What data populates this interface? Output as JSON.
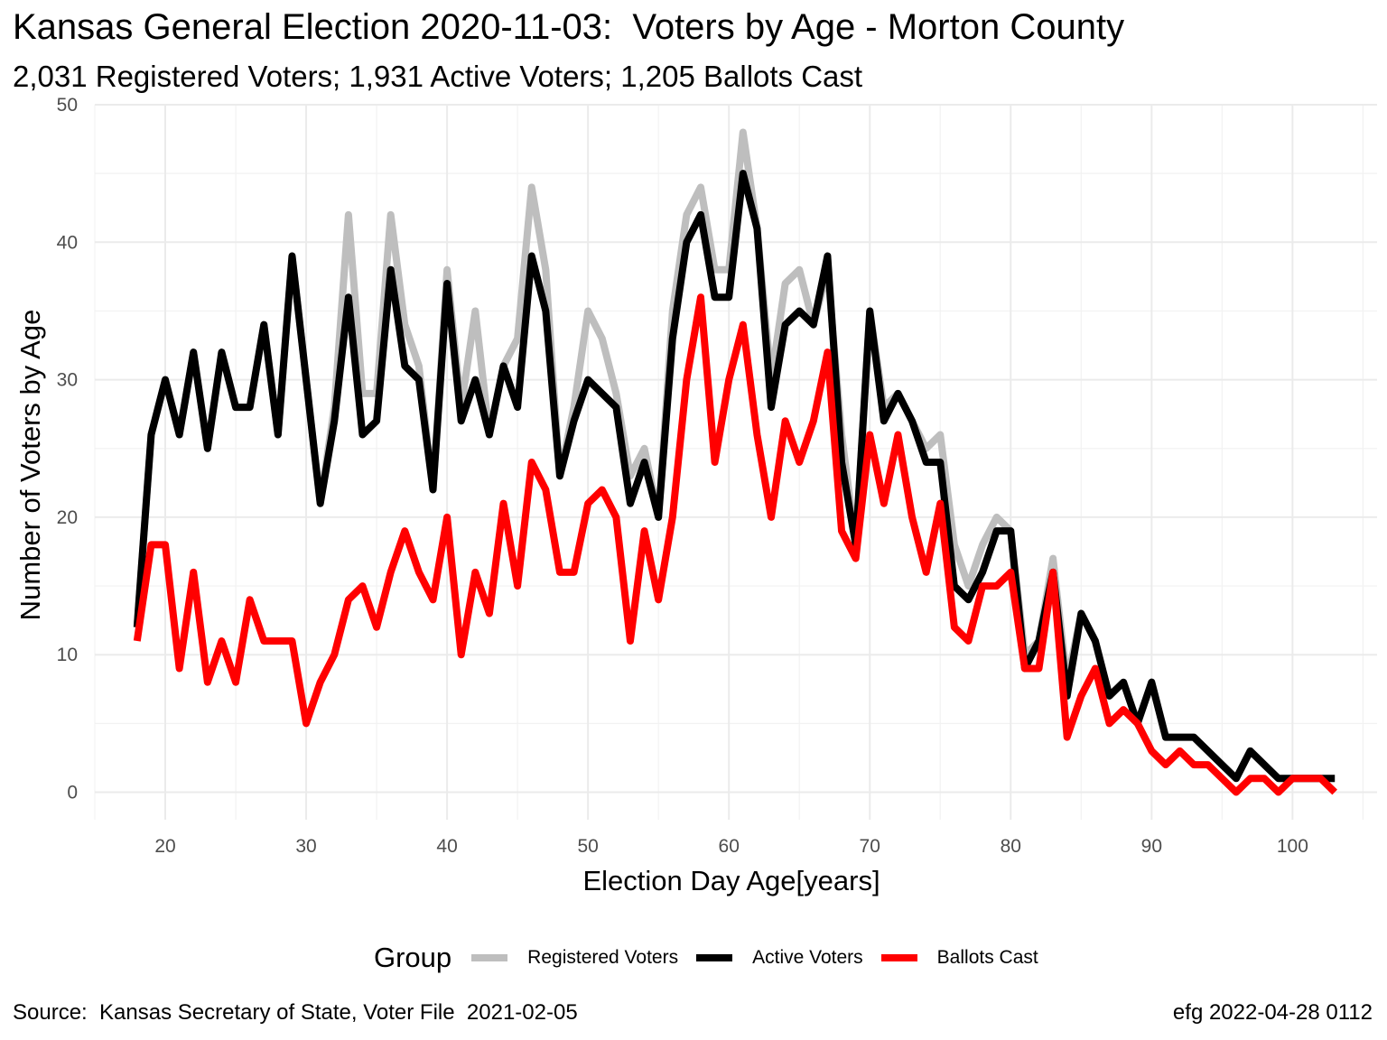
{
  "chart_data": {
    "type": "line",
    "title": "Kansas General Election 2020-11-03:  Voters by Age - Morton County",
    "subtitle": "2,031 Registered Voters; 1,931 Active Voters; 1,205 Ballots Cast",
    "xlabel": "Election Day Age[years]",
    "ylabel": "Number of Voters by Age",
    "xlim": [
      15,
      106
    ],
    "ylim": [
      -2,
      50
    ],
    "xticks": [
      20,
      30,
      40,
      50,
      60,
      70,
      80,
      90,
      100
    ],
    "yticks": [
      0,
      10,
      20,
      30,
      40,
      50
    ],
    "grid": true,
    "legend": {
      "title": "Group",
      "position": "bottom"
    },
    "caption_left": "Source:  Kansas Secretary of State, Voter File  2021-02-05",
    "caption_right": "efg 2022-04-28 0112",
    "x": [
      18,
      19,
      20,
      21,
      22,
      23,
      24,
      25,
      26,
      27,
      28,
      29,
      30,
      31,
      32,
      33,
      34,
      35,
      36,
      37,
      38,
      39,
      40,
      41,
      42,
      43,
      44,
      45,
      46,
      47,
      48,
      49,
      50,
      51,
      52,
      53,
      54,
      55,
      56,
      57,
      58,
      59,
      60,
      61,
      62,
      63,
      64,
      65,
      66,
      67,
      68,
      69,
      70,
      71,
      72,
      73,
      74,
      75,
      76,
      77,
      78,
      79,
      80,
      81,
      82,
      83,
      84,
      85,
      86,
      87,
      88,
      89,
      90,
      91,
      92,
      93,
      94,
      95,
      96,
      97,
      98,
      99,
      100,
      101,
      102,
      103
    ],
    "series": [
      {
        "name": "Registered Voters",
        "color": "#bebebe",
        "values": [
          12,
          26,
          30,
          26,
          32,
          25,
          32,
          28,
          28,
          34,
          26,
          39,
          30,
          21,
          28,
          42,
          29,
          29,
          42,
          34,
          31,
          22,
          38,
          28,
          35,
          26,
          31,
          33,
          44,
          38,
          23,
          28,
          35,
          33,
          29,
          23,
          25,
          20,
          35,
          42,
          44,
          38,
          38,
          48,
          41,
          30,
          37,
          38,
          34,
          38,
          26,
          18,
          35,
          28,
          29,
          27,
          25,
          26,
          18,
          15,
          18,
          20,
          19,
          10,
          11,
          17,
          8,
          13,
          11,
          7,
          8,
          5,
          8,
          4,
          4,
          4,
          3,
          2,
          1,
          3,
          2,
          1,
          1,
          1,
          1,
          1
        ]
      },
      {
        "name": "Active Voters",
        "color": "#000000",
        "values": [
          12,
          26,
          30,
          26,
          32,
          25,
          32,
          28,
          28,
          34,
          26,
          39,
          30,
          21,
          27,
          36,
          26,
          27,
          38,
          31,
          30,
          22,
          37,
          27,
          30,
          26,
          31,
          28,
          39,
          35,
          23,
          27,
          30,
          29,
          28,
          21,
          24,
          20,
          33,
          40,
          42,
          36,
          36,
          45,
          41,
          28,
          34,
          35,
          34,
          39,
          24,
          18,
          35,
          27,
          29,
          27,
          24,
          24,
          15,
          14,
          16,
          19,
          19,
          9,
          11,
          16,
          7,
          13,
          11,
          7,
          8,
          5,
          8,
          4,
          4,
          4,
          3,
          2,
          1,
          3,
          2,
          1,
          1,
          1,
          1,
          1
        ]
      },
      {
        "name": "Ballots Cast",
        "color": "#ff0000",
        "values": [
          11,
          18,
          18,
          9,
          16,
          8,
          11,
          8,
          14,
          11,
          11,
          11,
          5,
          8,
          10,
          14,
          15,
          12,
          16,
          19,
          16,
          14,
          20,
          10,
          16,
          13,
          21,
          15,
          24,
          22,
          16,
          16,
          21,
          22,
          20,
          11,
          19,
          14,
          20,
          30,
          36,
          24,
          30,
          34,
          26,
          20,
          27,
          24,
          27,
          32,
          19,
          17,
          26,
          21,
          26,
          20,
          16,
          21,
          12,
          11,
          15,
          15,
          16,
          9,
          9,
          16,
          4,
          7,
          9,
          5,
          6,
          5,
          3,
          2,
          3,
          2,
          2,
          1,
          0,
          1,
          1,
          0,
          1,
          1,
          1,
          0
        ]
      }
    ]
  }
}
